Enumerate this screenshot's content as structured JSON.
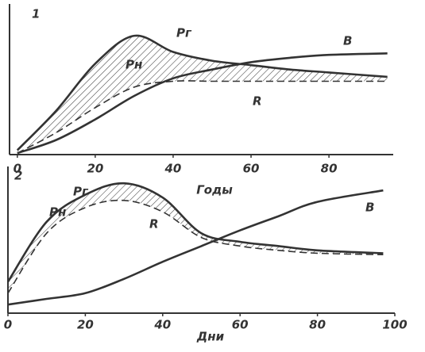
{
  "chart_data": [
    {
      "type": "line",
      "panel_label": "1",
      "xlabel": "Годы",
      "x": [
        0,
        10,
        20,
        30,
        40,
        50,
        60,
        70,
        80,
        95
      ],
      "xlim": [
        -2,
        96.5
      ],
      "xticks": [
        0,
        20,
        40,
        60,
        80
      ],
      "ylim": [
        0,
        100
      ],
      "hatch_between": [
        "Pг",
        "R"
      ],
      "series": [
        {
          "name": "Pг",
          "color": "#333",
          "dashed": false,
          "values": [
            3,
            30,
            62,
            81,
            70,
            64,
            61,
            58,
            56,
            53
          ]
        },
        {
          "name": "R",
          "color": "#333",
          "dashed": true,
          "values": [
            1,
            15,
            32,
            46,
            50,
            50,
            50,
            50,
            50,
            50
          ]
        },
        {
          "name": "B",
          "color": "#333",
          "dashed": false,
          "values": [
            1,
            10,
            24,
            40,
            52,
            58,
            63,
            66,
            68,
            69
          ]
        }
      ],
      "annotations": [
        "Pн"
      ]
    },
    {
      "type": "line",
      "panel_label": "2",
      "xlabel": "Дни",
      "x": [
        0,
        10,
        20,
        30,
        40,
        50,
        60,
        70,
        80,
        97
      ],
      "xlim": [
        0,
        100
      ],
      "xticks": [
        0,
        20,
        40,
        60,
        80,
        100
      ],
      "ylim": [
        0,
        100
      ],
      "hatch_between": [
        "Pг",
        "R"
      ],
      "series": [
        {
          "name": "Pг",
          "color": "#333",
          "dashed": false,
          "values": [
            22,
            64,
            83,
            91,
            81,
            56,
            50,
            47,
            44,
            42
          ]
        },
        {
          "name": "R",
          "color": "#333",
          "dashed": true,
          "values": [
            14,
            56,
            74,
            79,
            71,
            53,
            47,
            44,
            42,
            41
          ]
        },
        {
          "name": "B",
          "color": "#333",
          "dashed": false,
          "values": [
            6,
            10,
            14,
            24,
            36,
            47,
            58,
            68,
            78,
            86
          ]
        }
      ],
      "annotations": [
        "Pн"
      ]
    }
  ]
}
